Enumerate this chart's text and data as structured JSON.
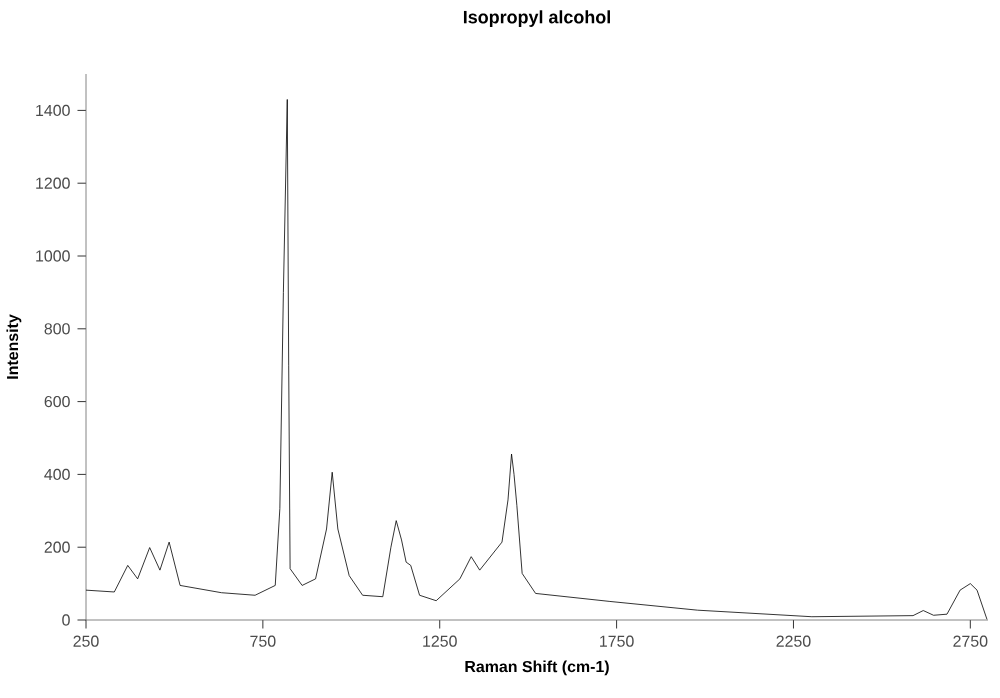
{
  "chart_data": {
    "type": "line",
    "title": "Isopropyl alcohol",
    "xlabel": "Raman Shift (cm-1)",
    "ylabel": "Intensity",
    "xlim": [
      250,
      2800
    ],
    "xticks": [
      250,
      750,
      1250,
      1750,
      2250,
      2750
    ],
    "ylim": [
      0,
      1500
    ],
    "yticks": [
      0,
      200,
      400,
      600,
      800,
      1000,
      1200,
      1400
    ],
    "grid": false,
    "series": [
      {
        "color": "#000000",
        "x": [
          250,
          330,
          368,
          396,
          430,
          459,
          485,
          516,
          633,
          728,
          785,
          798,
          808,
          819,
          823,
          827,
          861,
          899,
          930,
          946,
          962,
          994,
          1032,
          1089,
          1112,
          1127,
          1142,
          1155,
          1168,
          1193,
          1240,
          1307,
          1339,
          1363,
          1426,
          1443,
          1453,
          1460,
          1468,
          1483,
          1521,
          1731,
          1979,
          2302,
          2588,
          2617,
          2646,
          2684,
          2721,
          2750,
          2769,
          2797
        ],
        "values": [
          82,
          77,
          150,
          113,
          199,
          137,
          214,
          95,
          75,
          68,
          95,
          306,
          900,
          1430,
          700,
          141,
          95,
          113,
          250,
          406,
          250,
          122,
          68,
          64,
          200,
          273,
          220,
          159,
          150,
          68,
          53,
          113,
          174,
          137,
          214,
          330,
          456,
          400,
          315,
          128,
          73,
          51,
          27,
          9,
          12,
          26,
          13,
          16,
          82,
          100,
          82,
          2
        ]
      }
    ]
  }
}
